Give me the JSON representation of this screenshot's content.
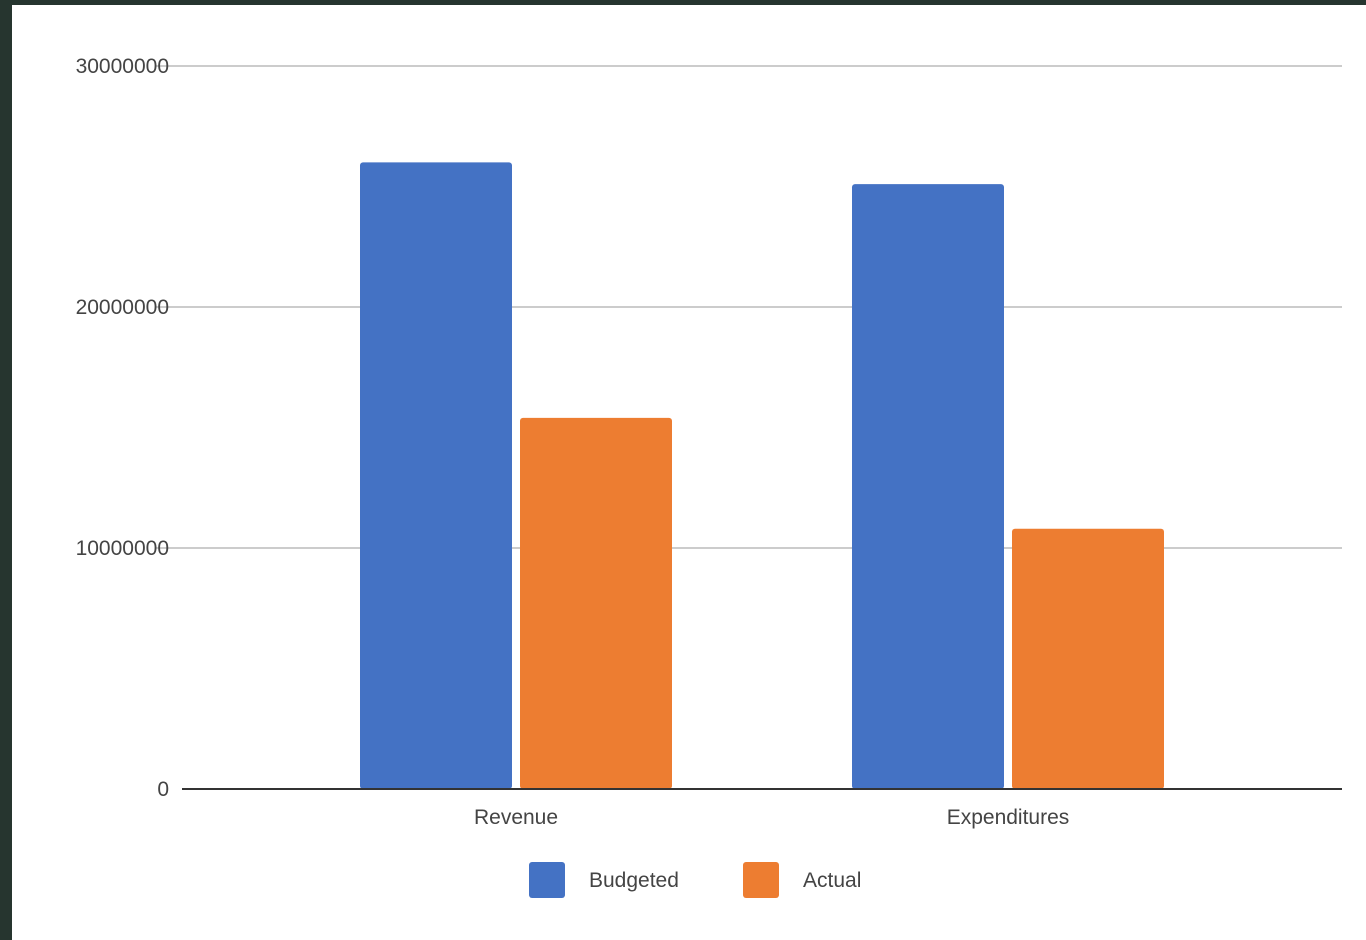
{
  "chart_data": {
    "type": "bar",
    "title": "",
    "xlabel": "",
    "ylabel": "",
    "categories": [
      "Revenue",
      "Expenditures"
    ],
    "series": [
      {
        "name": "Budgeted",
        "values": [
          26000000,
          25100000
        ],
        "color": "#4472c4"
      },
      {
        "name": "Actual",
        "values": [
          15400000,
          10800000
        ],
        "color": "#ed7d31"
      }
    ],
    "ylim": [
      0,
      30000000
    ],
    "yticks": [
      "0",
      "10000000",
      "20000000",
      "30000000"
    ],
    "grid": true,
    "legend": "bottom"
  }
}
